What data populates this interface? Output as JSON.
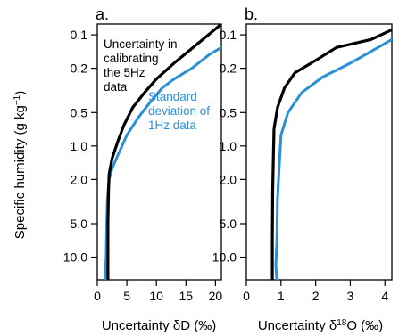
{
  "figure": {
    "ylabel": "Specific humidity (g kg",
    "ylabel_sup": "−1",
    "ylabel_close": ")",
    "yticks": [
      0.1,
      0.2,
      0.5,
      1.0,
      2.0,
      5.0,
      10.0
    ],
    "ytick_labels": [
      "0.1",
      "0.2",
      "0.5",
      "1.0",
      "2.0",
      "5.0",
      "10.0"
    ]
  },
  "chart_data": [
    {
      "type": "line",
      "panel_label": "a.",
      "xlabel": "Uncertainty δD (‰)",
      "xlim": [
        0,
        21
      ],
      "ylim": [
        0.08,
        16
      ],
      "yscale": "log",
      "y_inverted": true,
      "xticks": [
        0,
        5,
        10,
        15,
        20
      ],
      "xtick_labels": [
        "0",
        "5",
        "10",
        "15",
        "20"
      ],
      "series": [
        {
          "name": "Uncertainty in calibrating the 5Hz data",
          "color": "#000000",
          "x": [
            21,
            17,
            13,
            10,
            8,
            6,
            4.5,
            3.5,
            2.5,
            2.0,
            1.9,
            1.8,
            1.8,
            1.8
          ],
          "y": [
            0.08,
            0.12,
            0.18,
            0.25,
            0.33,
            0.45,
            0.65,
            0.9,
            1.3,
            1.8,
            2.5,
            5,
            10,
            16
          ]
        },
        {
          "name": "Standard deviation of 1Hz data",
          "color": "#2a8fd4",
          "x": [
            21,
            19,
            16,
            13,
            11,
            9,
            7,
            5,
            3.5,
            2.5,
            2.0,
            1.7,
            1.6,
            1.5,
            1.3
          ],
          "y": [
            0.13,
            0.15,
            0.2,
            0.25,
            0.3,
            0.4,
            0.55,
            0.8,
            1.2,
            1.6,
            2.0,
            3.0,
            5,
            10,
            16
          ]
        }
      ],
      "annotations": [
        {
          "lines": [
            "Uncertainty in",
            "calibrating",
            "the 5Hz",
            "data"
          ],
          "color": "#000000"
        },
        {
          "lines": [
            "Standard",
            "deviation of",
            "1Hz data"
          ],
          "color": "#2a8fd4"
        }
      ]
    },
    {
      "type": "line",
      "panel_label": "b.",
      "xlabel_prefix": "Uncertainty δ",
      "xlabel_sup": "18",
      "xlabel_suffix": "O (‰)",
      "xlim": [
        0,
        4.2
      ],
      "ylim": [
        0.08,
        16
      ],
      "yscale": "log",
      "y_inverted": true,
      "xticks": [
        0,
        1,
        2,
        3,
        4
      ],
      "xtick_labels": [
        "0",
        "1",
        "2",
        "3",
        "4"
      ],
      "series": [
        {
          "name": "Uncertainty in calibrating the 5Hz data",
          "color": "#000000",
          "x": [
            4.2,
            3.6,
            2.6,
            2.0,
            1.4,
            1.1,
            0.9,
            0.8,
            0.78,
            0.76,
            0.75,
            0.75
          ],
          "y": [
            0.09,
            0.11,
            0.13,
            0.17,
            0.22,
            0.3,
            0.45,
            0.7,
            1.2,
            2.5,
            7,
            16
          ]
        },
        {
          "name": "Standard deviation of 1Hz data",
          "color": "#2a8fd4",
          "x": [
            4.2,
            3.8,
            3.0,
            2.2,
            1.6,
            1.2,
            1.0,
            0.95,
            0.9,
            0.88,
            0.85,
            0.88
          ],
          "y": [
            0.11,
            0.13,
            0.18,
            0.24,
            0.33,
            0.5,
            0.8,
            1.5,
            3,
            7,
            12,
            16
          ]
        }
      ]
    }
  ]
}
